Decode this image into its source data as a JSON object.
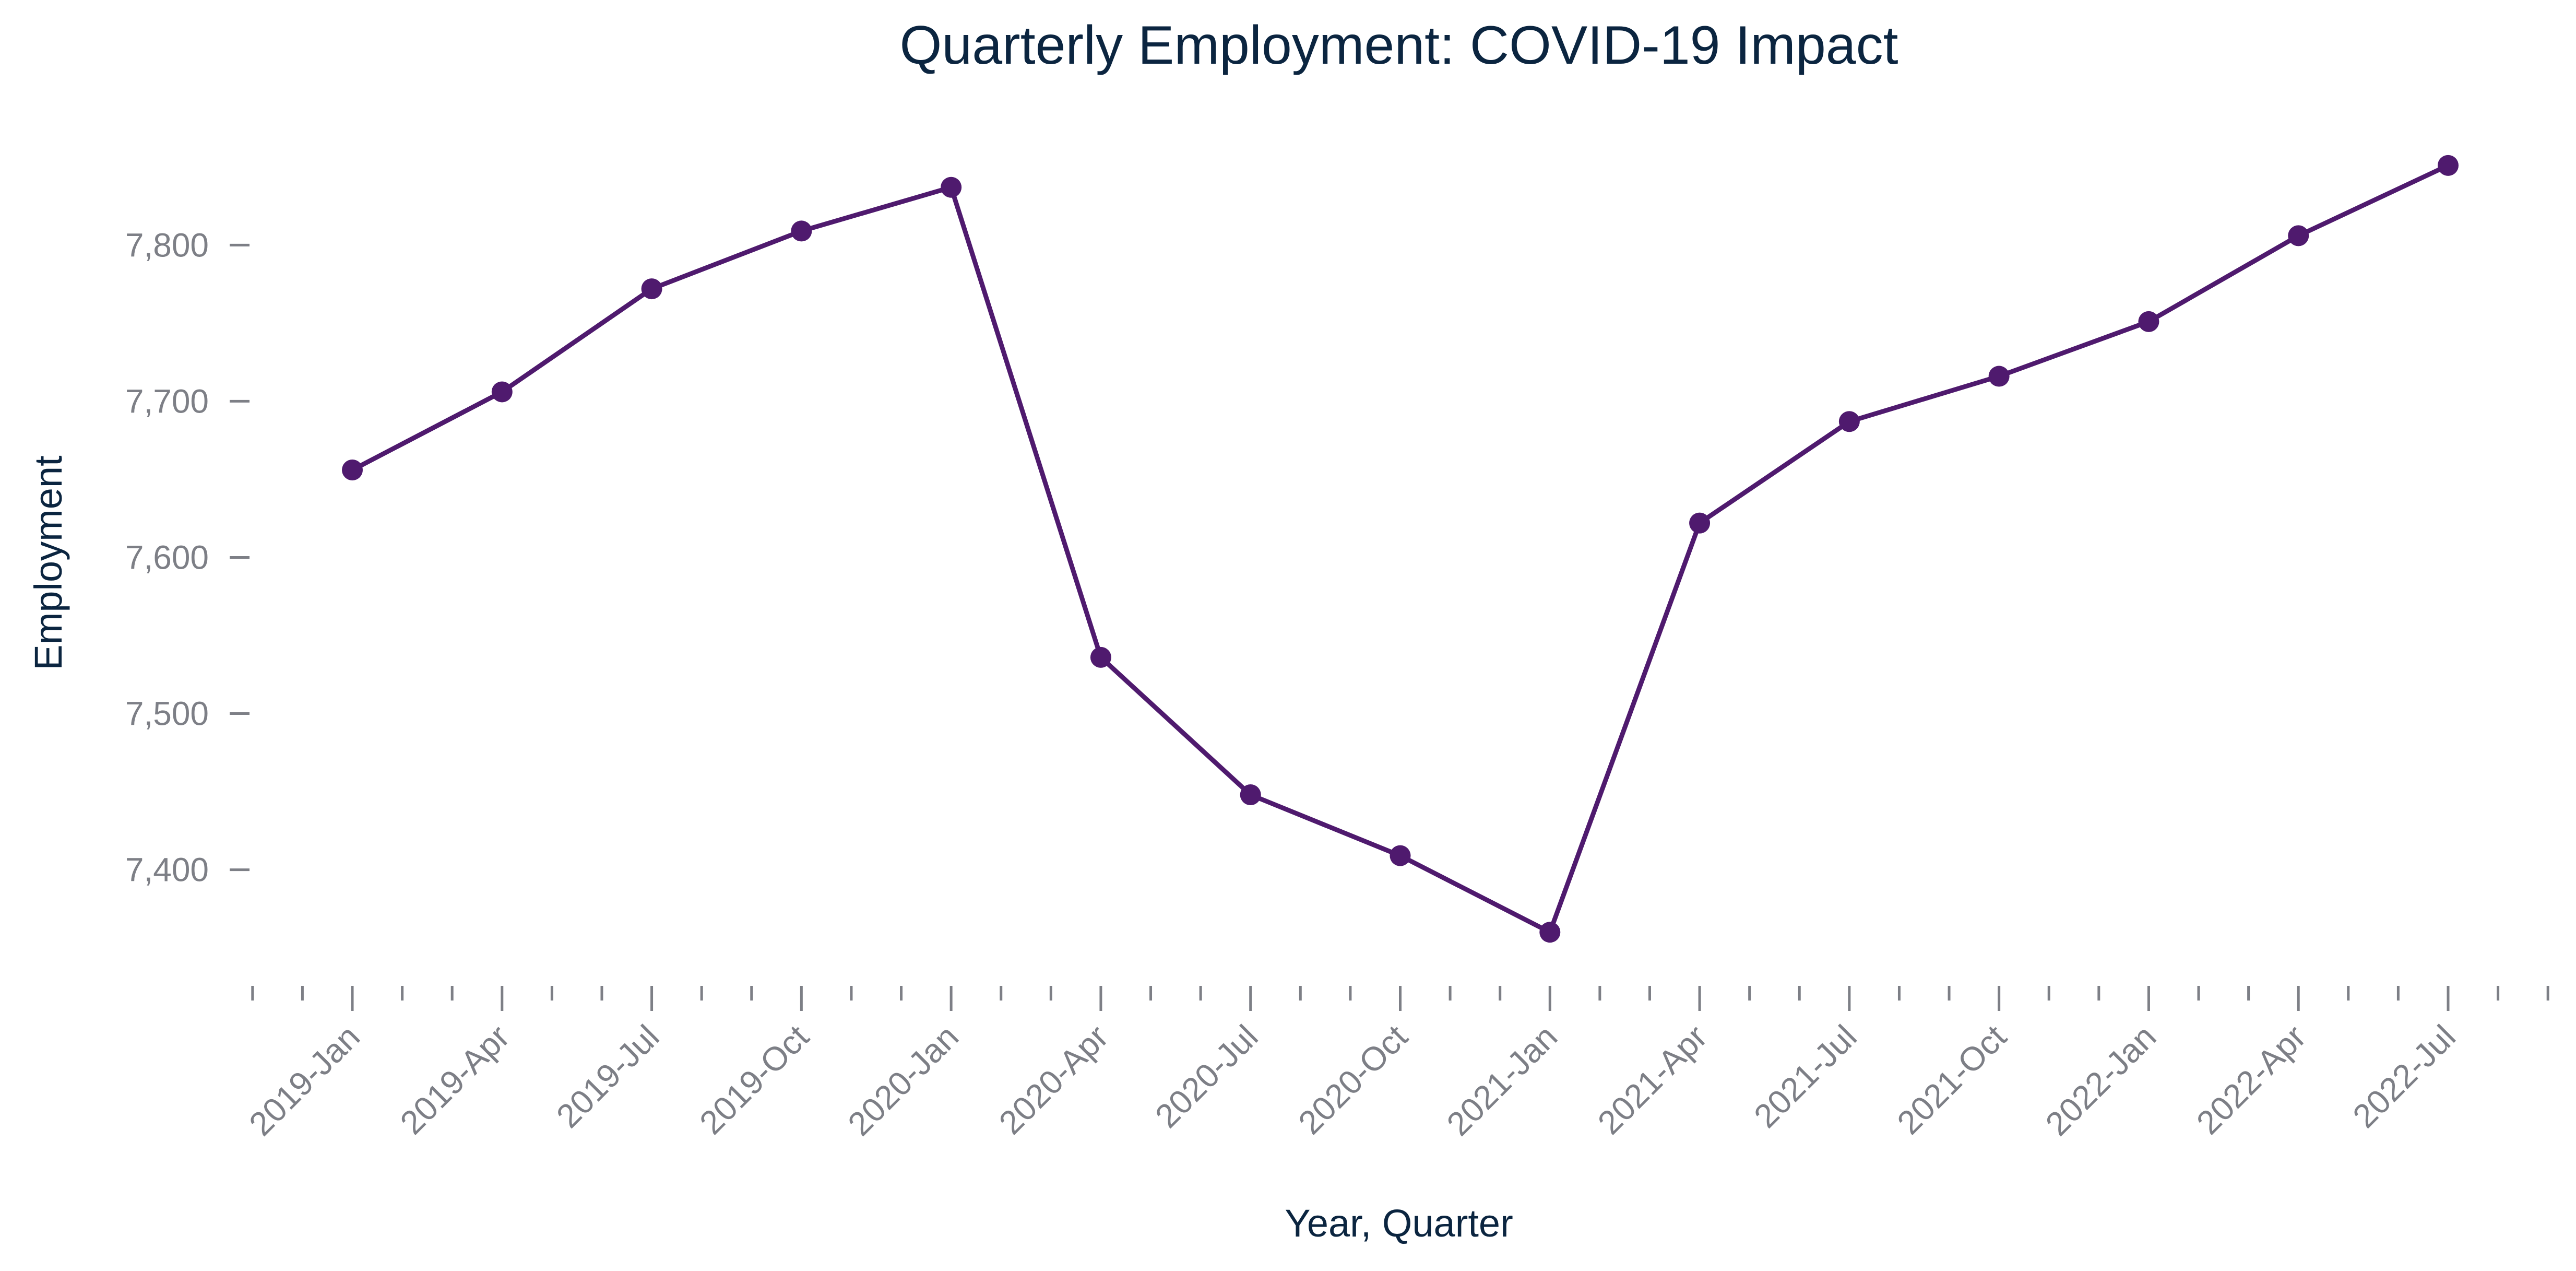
{
  "chart_data": {
    "type": "line",
    "title": "Quarterly Employment: COVID-19 Impact",
    "xlabel": "Year, Quarter",
    "ylabel": "Employment",
    "categories": [
      "2019-Jan",
      "2019-Apr",
      "2019-Jul",
      "2019-Oct",
      "2020-Jan",
      "2020-Apr",
      "2020-Jul",
      "2020-Oct",
      "2021-Jan",
      "2021-Apr",
      "2021-Jul",
      "2021-Oct",
      "2022-Jan",
      "2022-Apr",
      "2022-Jul"
    ],
    "series": [
      {
        "values": [
          7656,
          7706,
          7772,
          7809,
          7837,
          7536,
          7448,
          7409,
          7360,
          7622,
          7687,
          7716,
          7751,
          7806,
          7851
        ],
        "color": "#4f1a6e"
      }
    ],
    "yticks": [
      7400,
      7500,
      7600,
      7700,
      7800
    ],
    "ytick_labels": [
      "7,400",
      "7,500",
      "7,600",
      "7,700",
      "7,800"
    ],
    "ylim": [
      7340,
      7870
    ],
    "minor_ticks_per_category": 3,
    "grid": false,
    "legend": "none"
  }
}
